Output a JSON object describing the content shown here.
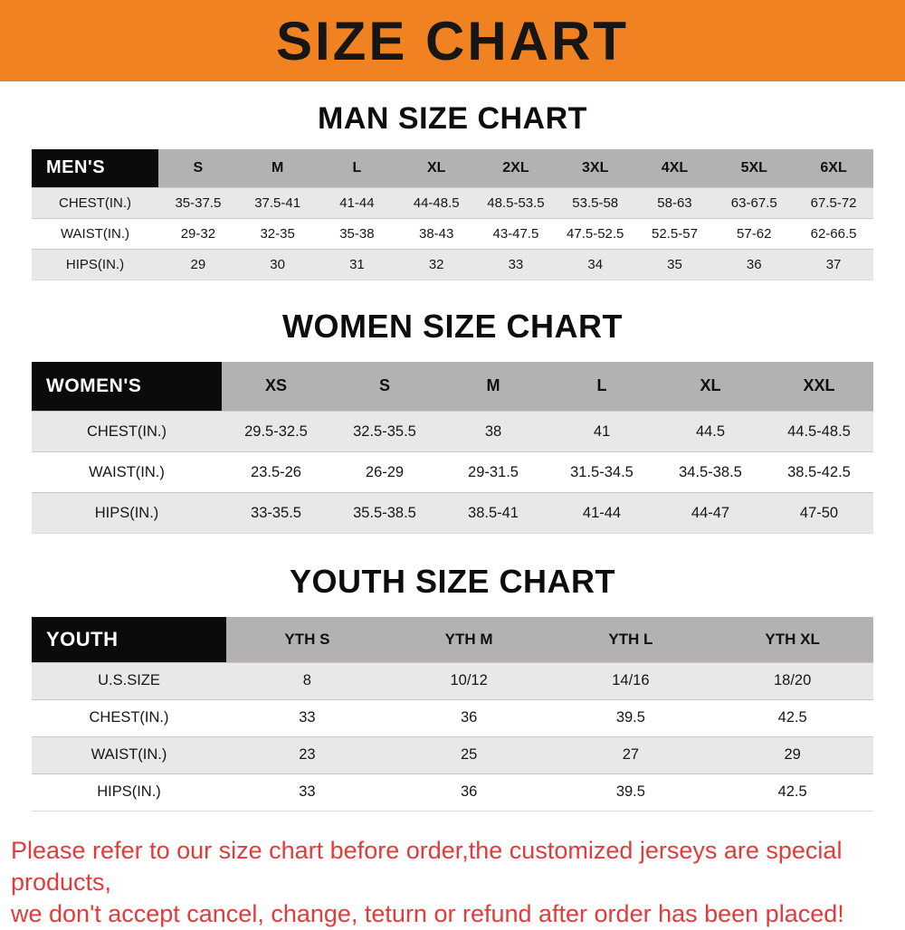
{
  "banner": {
    "title": "SIZE CHART"
  },
  "colors": {
    "banner_bg": "#f08222",
    "banner_text": "#161616",
    "header_cell_bg": "#0b0b0b",
    "size_header_bg": "#b3b1b2",
    "alt_row_bg": "#e9e8e8",
    "footer_text": "#e23b3b"
  },
  "chart_data": [
    {
      "type": "table",
      "id": "men",
      "title": "MAN SIZE CHART",
      "header_label": "MEN'S",
      "columns": [
        "S",
        "M",
        "L",
        "XL",
        "2XL",
        "3XL",
        "4XL",
        "5XL",
        "6XL"
      ],
      "rows": [
        {
          "label": "CHEST(IN.)",
          "values": [
            "35-37.5",
            "37.5-41",
            "41-44",
            "44-48.5",
            "48.5-53.5",
            "53.5-58",
            "58-63",
            "63-67.5",
            "67.5-72"
          ]
        },
        {
          "label": "WAIST(IN.)",
          "values": [
            "29-32",
            "32-35",
            "35-38",
            "38-43",
            "43-47.5",
            "47.5-52.5",
            "52.5-57",
            "57-62",
            "62-66.5"
          ]
        },
        {
          "label": "HIPS(IN.)",
          "values": [
            "29",
            "30",
            "31",
            "32",
            "33",
            "34",
            "35",
            "36",
            "37"
          ]
        }
      ]
    },
    {
      "type": "table",
      "id": "women",
      "title": "WOMEN SIZE CHART",
      "header_label": "WOMEN'S",
      "columns": [
        "XS",
        "S",
        "M",
        "L",
        "XL",
        "XXL"
      ],
      "rows": [
        {
          "label": "CHEST(IN.)",
          "values": [
            "29.5-32.5",
            "32.5-35.5",
            "38",
            "41",
            "44.5",
            "44.5-48.5"
          ]
        },
        {
          "label": "WAIST(IN.)",
          "values": [
            "23.5-26",
            "26-29",
            "29-31.5",
            "31.5-34.5",
            "34.5-38.5",
            "38.5-42.5"
          ]
        },
        {
          "label": "HIPS(IN.)",
          "values": [
            "33-35.5",
            "35.5-38.5",
            "38.5-41",
            "41-44",
            "44-47",
            "47-50"
          ]
        }
      ]
    },
    {
      "type": "table",
      "id": "youth",
      "title": "YOUTH SIZE CHART",
      "header_label": "YOUTH",
      "columns": [
        "YTH S",
        "YTH M",
        "YTH L",
        "YTH XL"
      ],
      "rows": [
        {
          "label": "U.S.SIZE",
          "values": [
            "8",
            "10/12",
            "14/16",
            "18/20"
          ]
        },
        {
          "label": "CHEST(IN.)",
          "values": [
            "33",
            "36",
            "39.5",
            "42.5"
          ]
        },
        {
          "label": "WAIST(IN.)",
          "values": [
            "23",
            "25",
            "27",
            "29"
          ]
        },
        {
          "label": "HIPS(IN.)",
          "values": [
            "33",
            "36",
            "39.5",
            "42.5"
          ]
        }
      ]
    }
  ],
  "footer": {
    "lines": [
      "Please refer to our size chart before order,the customized jerseys are special products,",
      "we don't accept cancel, change, teturn or refund after order has been placed!"
    ]
  }
}
